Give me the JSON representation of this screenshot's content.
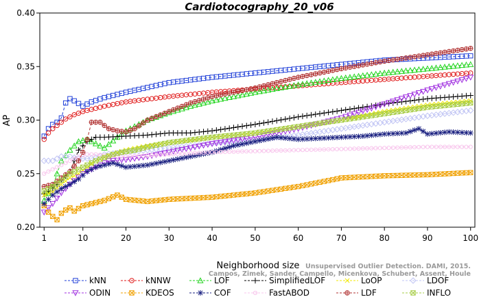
{
  "chart_data": {
    "type": "line",
    "title": "Cardiotocography_20_v06",
    "xlabel": "Neighborhood size",
    "ylabel": "AP",
    "xlim": [
      0,
      101
    ],
    "ylim": [
      0.2,
      0.4
    ],
    "xticks": [
      1,
      10,
      20,
      30,
      40,
      50,
      60,
      70,
      80,
      90,
      100
    ],
    "yticks": [
      0.2,
      0.25,
      0.3,
      0.35,
      0.4
    ],
    "ytick_labels": [
      "0.20",
      "0.25",
      "0.30",
      "0.35",
      "0.40"
    ],
    "grid": false,
    "legend_position": "bottom",
    "credit": [
      "Campos, Zimek, Sander, Campello, Micenkova, Schubert, Assent, Houle",
      "Unsupervised Outlier Detection. DAMI, 2015."
    ],
    "series": [
      {
        "name": "kNN",
        "color": "#1f3fd8",
        "marker": "square",
        "points": [
          [
            1,
            0.285
          ],
          [
            2,
            0.292
          ],
          [
            3,
            0.296
          ],
          [
            4,
            0.298
          ],
          [
            5,
            0.302
          ],
          [
            6,
            0.316
          ],
          [
            7,
            0.32
          ],
          [
            8,
            0.318
          ],
          [
            10,
            0.313
          ],
          [
            12,
            0.317
          ],
          [
            15,
            0.321
          ],
          [
            20,
            0.326
          ],
          [
            30,
            0.335
          ],
          [
            40,
            0.34
          ],
          [
            50,
            0.344
          ],
          [
            60,
            0.348
          ],
          [
            70,
            0.352
          ],
          [
            80,
            0.356
          ],
          [
            90,
            0.358
          ],
          [
            100,
            0.36
          ]
        ]
      },
      {
        "name": "kNNW",
        "color": "#e01a1a",
        "marker": "circle",
        "points": [
          [
            1,
            0.282
          ],
          [
            2,
            0.288
          ],
          [
            3,
            0.292
          ],
          [
            4,
            0.295
          ],
          [
            5,
            0.298
          ],
          [
            6,
            0.301
          ],
          [
            7,
            0.303
          ],
          [
            8,
            0.305
          ],
          [
            10,
            0.308
          ],
          [
            15,
            0.313
          ],
          [
            20,
            0.317
          ],
          [
            30,
            0.322
          ],
          [
            40,
            0.326
          ],
          [
            50,
            0.329
          ],
          [
            60,
            0.332
          ],
          [
            70,
            0.335
          ],
          [
            80,
            0.338
          ],
          [
            90,
            0.341
          ],
          [
            100,
            0.344
          ]
        ]
      },
      {
        "name": "LOF",
        "color": "#22d41e",
        "marker": "triangle",
        "points": [
          [
            1,
            0.225
          ],
          [
            3,
            0.238
          ],
          [
            5,
            0.262
          ],
          [
            7,
            0.272
          ],
          [
            9,
            0.28
          ],
          [
            11,
            0.282
          ],
          [
            13,
            0.278
          ],
          [
            15,
            0.274
          ],
          [
            18,
            0.284
          ],
          [
            20,
            0.29
          ],
          [
            25,
            0.3
          ],
          [
            30,
            0.307
          ],
          [
            35,
            0.313
          ],
          [
            40,
            0.318
          ],
          [
            50,
            0.326
          ],
          [
            60,
            0.333
          ],
          [
            70,
            0.339
          ],
          [
            80,
            0.344
          ],
          [
            90,
            0.348
          ],
          [
            100,
            0.352
          ]
        ]
      },
      {
        "name": "SimplifiedLOF",
        "color": "#000000",
        "marker": "plus",
        "points": [
          [
            1,
            0.231
          ],
          [
            3,
            0.236
          ],
          [
            5,
            0.244
          ],
          [
            7,
            0.252
          ],
          [
            9,
            0.272
          ],
          [
            11,
            0.28
          ],
          [
            13,
            0.284
          ],
          [
            15,
            0.284
          ],
          [
            20,
            0.285
          ],
          [
            25,
            0.286
          ],
          [
            30,
            0.288
          ],
          [
            35,
            0.288
          ],
          [
            40,
            0.29
          ],
          [
            50,
            0.296
          ],
          [
            60,
            0.303
          ],
          [
            70,
            0.309
          ],
          [
            80,
            0.315
          ],
          [
            90,
            0.32
          ],
          [
            100,
            0.323
          ]
        ]
      },
      {
        "name": "LoOP",
        "color": "#f0e800",
        "marker": "x",
        "points": [
          [
            1,
            0.23
          ],
          [
            3,
            0.233
          ],
          [
            5,
            0.24
          ],
          [
            7,
            0.246
          ],
          [
            9,
            0.25
          ],
          [
            11,
            0.256
          ],
          [
            13,
            0.262
          ],
          [
            15,
            0.266
          ],
          [
            20,
            0.272
          ],
          [
            25,
            0.276
          ],
          [
            30,
            0.279
          ],
          [
            35,
            0.281
          ],
          [
            40,
            0.284
          ],
          [
            50,
            0.288
          ],
          [
            60,
            0.294
          ],
          [
            70,
            0.3
          ],
          [
            80,
            0.308
          ],
          [
            90,
            0.314
          ],
          [
            100,
            0.318
          ]
        ]
      },
      {
        "name": "LDOF",
        "color": "#c0c4f4",
        "marker": "diamond",
        "points": [
          [
            1,
            0.262
          ],
          [
            3,
            0.262
          ],
          [
            5,
            0.266
          ],
          [
            7,
            0.266
          ],
          [
            9,
            0.264
          ],
          [
            11,
            0.264
          ],
          [
            13,
            0.265
          ],
          [
            15,
            0.268
          ],
          [
            20,
            0.27
          ],
          [
            25,
            0.272
          ],
          [
            30,
            0.274
          ],
          [
            40,
            0.278
          ],
          [
            50,
            0.282
          ],
          [
            60,
            0.286
          ],
          [
            70,
            0.292
          ],
          [
            80,
            0.298
          ],
          [
            90,
            0.304
          ],
          [
            100,
            0.309
          ]
        ]
      },
      {
        "name": "ODIN",
        "color": "#a030e0",
        "marker": "triangle-down",
        "points": [
          [
            1,
            0.214
          ],
          [
            3,
            0.222
          ],
          [
            5,
            0.232
          ],
          [
            7,
            0.24
          ],
          [
            10,
            0.25
          ],
          [
            13,
            0.256
          ],
          [
            16,
            0.262
          ],
          [
            20,
            0.263
          ],
          [
            25,
            0.266
          ],
          [
            30,
            0.27
          ],
          [
            35,
            0.274
          ],
          [
            40,
            0.278
          ],
          [
            50,
            0.284
          ],
          [
            60,
            0.292
          ],
          [
            70,
            0.302
          ],
          [
            80,
            0.315
          ],
          [
            90,
            0.328
          ],
          [
            100,
            0.34
          ]
        ]
      },
      {
        "name": "KDEOS",
        "color": "#f0a000",
        "marker": "square-x",
        "points": [
          [
            1,
            0.22
          ],
          [
            2,
            0.214
          ],
          [
            3,
            0.21
          ],
          [
            4,
            0.207
          ],
          [
            5,
            0.213
          ],
          [
            6,
            0.216
          ],
          [
            7,
            0.218
          ],
          [
            8,
            0.215
          ],
          [
            10,
            0.22
          ],
          [
            12,
            0.222
          ],
          [
            15,
            0.225
          ],
          [
            18,
            0.23
          ],
          [
            20,
            0.226
          ],
          [
            25,
            0.224
          ],
          [
            30,
            0.226
          ],
          [
            40,
            0.228
          ],
          [
            50,
            0.232
          ],
          [
            60,
            0.238
          ],
          [
            70,
            0.246
          ],
          [
            80,
            0.248
          ],
          [
            90,
            0.249
          ],
          [
            100,
            0.251
          ]
        ]
      },
      {
        "name": "COF",
        "color": "#1a2080",
        "marker": "asterisk",
        "points": [
          [
            1,
            0.222
          ],
          [
            3,
            0.23
          ],
          [
            5,
            0.236
          ],
          [
            7,
            0.24
          ],
          [
            9,
            0.245
          ],
          [
            11,
            0.252
          ],
          [
            13,
            0.256
          ],
          [
            15,
            0.258
          ],
          [
            17,
            0.26
          ],
          [
            20,
            0.256
          ],
          [
            25,
            0.258
          ],
          [
            30,
            0.262
          ],
          [
            35,
            0.266
          ],
          [
            40,
            0.27
          ],
          [
            45,
            0.276
          ],
          [
            50,
            0.28
          ],
          [
            55,
            0.284
          ],
          [
            60,
            0.282
          ],
          [
            65,
            0.283
          ],
          [
            70,
            0.284
          ],
          [
            75,
            0.285
          ],
          [
            80,
            0.287
          ],
          [
            85,
            0.288
          ],
          [
            88,
            0.292
          ],
          [
            90,
            0.287
          ],
          [
            95,
            0.289
          ],
          [
            100,
            0.288
          ]
        ]
      },
      {
        "name": "FastABOD",
        "color": "#f8c4ec",
        "marker": "circle-small",
        "points": [
          [
            1,
            0.25
          ],
          [
            3,
            0.254
          ],
          [
            5,
            0.258
          ],
          [
            7,
            0.262
          ],
          [
            9,
            0.266
          ],
          [
            11,
            0.268
          ],
          [
            13,
            0.268
          ],
          [
            15,
            0.267
          ],
          [
            20,
            0.266
          ],
          [
            30,
            0.268
          ],
          [
            40,
            0.27
          ],
          [
            50,
            0.271
          ],
          [
            60,
            0.272
          ],
          [
            70,
            0.273
          ],
          [
            80,
            0.274
          ],
          [
            90,
            0.275
          ],
          [
            100,
            0.275
          ]
        ]
      },
      {
        "name": "LDF",
        "color": "#b03030",
        "marker": "circle-plus",
        "points": [
          [
            1,
            0.238
          ],
          [
            3,
            0.24
          ],
          [
            5,
            0.246
          ],
          [
            7,
            0.252
          ],
          [
            9,
            0.262
          ],
          [
            10,
            0.27
          ],
          [
            11,
            0.282
          ],
          [
            12,
            0.298
          ],
          [
            14,
            0.298
          ],
          [
            16,
            0.292
          ],
          [
            18,
            0.29
          ],
          [
            20,
            0.289
          ],
          [
            22,
            0.292
          ],
          [
            25,
            0.3
          ],
          [
            30,
            0.308
          ],
          [
            35,
            0.316
          ],
          [
            40,
            0.322
          ],
          [
            45,
            0.326
          ],
          [
            50,
            0.33
          ],
          [
            60,
            0.34
          ],
          [
            70,
            0.348
          ],
          [
            80,
            0.355
          ],
          [
            90,
            0.361
          ],
          [
            100,
            0.367
          ]
        ]
      },
      {
        "name": "INFLO",
        "color": "#a6cc44",
        "marker": "square-x",
        "points": [
          [
            1,
            0.234
          ],
          [
            3,
            0.238
          ],
          [
            5,
            0.244
          ],
          [
            7,
            0.25
          ],
          [
            9,
            0.254
          ],
          [
            11,
            0.258
          ],
          [
            13,
            0.262
          ],
          [
            15,
            0.265
          ],
          [
            17,
            0.268
          ],
          [
            19,
            0.27
          ],
          [
            22,
            0.272
          ],
          [
            25,
            0.275
          ],
          [
            30,
            0.279
          ],
          [
            40,
            0.284
          ],
          [
            50,
            0.288
          ],
          [
            60,
            0.294
          ],
          [
            70,
            0.3
          ],
          [
            80,
            0.306
          ],
          [
            90,
            0.312
          ],
          [
            100,
            0.316
          ]
        ]
      }
    ]
  }
}
